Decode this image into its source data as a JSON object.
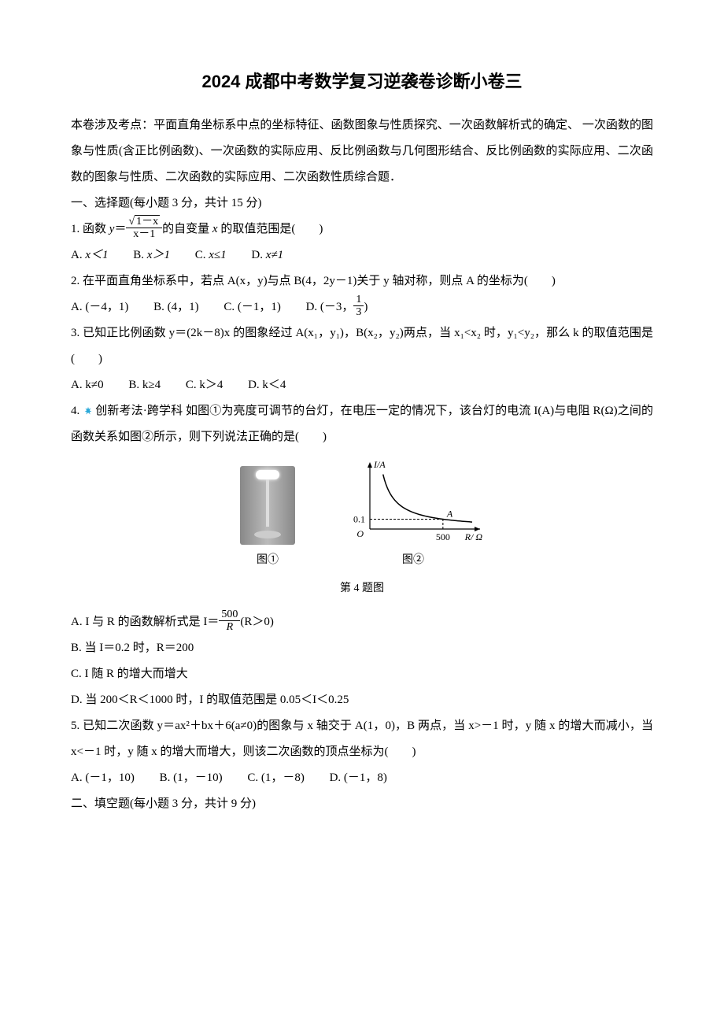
{
  "title": "2024 成都中考数学复习逆袭卷诊断小卷三",
  "intro": "本卷涉及考点：平面直角坐标系中点的坐标特征、函数图象与性质探究、一次函数解析式的确定、 一次函数的图象与性质(含正比例函数)、一次函数的实际应用、反比例函数与几何图形结合、反比例函数的实际应用、二次函数的图象与性质、二次函数的实际应用、二次函数性质综合题．",
  "section1_header": "一、选择题(每小题 3 分，共计 15 分)",
  "q1_prefix": "1. 函数 ",
  "q1_var_y": "y",
  "q1_eq": "＝",
  "q1_num_sqrt": "1－x",
  "q1_den": "x－1",
  "q1_suffix": "的自变量 ",
  "q1_var_x": "x",
  "q1_suffix2": " 的取值范围是(　　)",
  "q1_optA": "A. ",
  "q1_optA_math": "x＜1",
  "q1_optB": "B. ",
  "q1_optB_math": "x＞1",
  "q1_optC": "C. ",
  "q1_optC_math": "x≤1",
  "q1_optD": "D. ",
  "q1_optD_math": "x≠1",
  "q2": "2. 在平面直角坐标系中，若点 A(x，y)与点 B(4，2y－1)关于 y 轴对称，则点 A 的坐标为(　　)",
  "q2_optA": "A. (－4，1)",
  "q2_optB": "B. (4，1)",
  "q2_optC": "C. (－1，1)",
  "q2_optD_pre": "D. (－3，",
  "q2_optD_num": "1",
  "q2_optD_den": "3",
  "q2_optD_post": ")",
  "q3": "3. 已知正比例函数 y＝(2k－8)x 的图象经过 A(x₁，y₁)，B(x₂，y₂)两点，当 x₁<x₂ 时，y₁<y₂，那么 k 的取值范围是(　　)",
  "q3_optA": "A. k≠0",
  "q3_optB": "B. k≥4",
  "q3_optC": "C. k＞4",
  "q3_optD": "D. k＜4",
  "q4_pre": "4. ",
  "q4_tag": "创新考法·跨学科",
  "q4_body": " 如图①为亮度可调节的台灯，在电压一定的情况下，该台灯的电流 I(A)与电阻 R(Ω)之间的函数关系如图②所示，则下列说法正确的是(　　)",
  "fig1_label": "图①",
  "fig2_label": "图②",
  "fig_caption": "第 4 题图",
  "chart": {
    "type": "line",
    "y_axis_label": "I/A",
    "x_axis_label": "R/ Ω",
    "y_tick_label": "0.1",
    "x_tick_label": "500",
    "origin_label": "O",
    "point_label": "A",
    "curve_color": "#000000",
    "axis_color": "#000000",
    "dash_color": "#000000",
    "background_color": "#ffffff",
    "y_tick_value": 0.1,
    "x_tick_value": 500,
    "xlim": [
      0,
      700
    ],
    "ylim": [
      0,
      0.6
    ],
    "curve_type": "hyperbola",
    "curve_k": 50
  },
  "q4_optA_pre": "A. I 与 R 的函数解析式是 I＝",
  "q4_optA_num": "500",
  "q4_optA_den": "R",
  "q4_optA_post": "(R＞0)",
  "q4_optB": "B. 当 I＝0.2 时，R＝200",
  "q4_optC": "C. I 随 R 的增大而增大",
  "q4_optD": "D. 当 200＜R＜1000 时，I 的取值范围是 0.05＜I＜0.25",
  "q5": "5. 已知二次函数 y＝ax²＋bx＋6(a≠0)的图象与 x 轴交于 A(1，0)，B 两点，当 x>－1 时，y 随 x 的增大而减小，当 x<－1 时，y 随 x 的增大而增大，则该二次函数的顶点坐标为(　　)",
  "q5_optA": "A. (－1，10)",
  "q5_optB": "B. (1，－10)",
  "q5_optC": "C. (1，－8)",
  "q5_optD": "D. (－1，8)",
  "section2_header": "二、填空题(每小题 3 分，共计 9 分)",
  "colors": {
    "text": "#000000",
    "background": "#ffffff",
    "bulb": "#2aa9d9"
  }
}
